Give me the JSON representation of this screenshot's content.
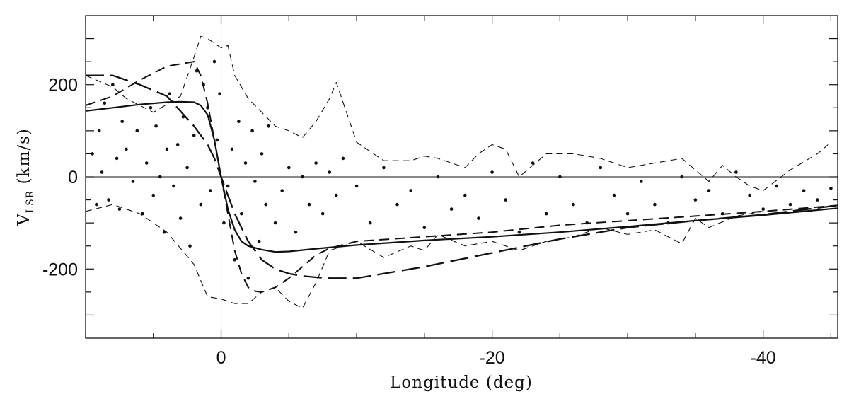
{
  "chart_data": {
    "type": "scatter",
    "title": "",
    "xlabel": "Longitude (deg)",
    "ylabel_main": "V",
    "ylabel_sub": "LSR",
    "ylabel_unit": "(km/s)",
    "xlim": [
      10,
      -45.5
    ],
    "ylim": [
      -350,
      350
    ],
    "x_ticks": [
      0,
      -20,
      -40
    ],
    "x_tick_labels": [
      "0",
      "-20",
      "-40"
    ],
    "y_ticks": [
      200,
      0,
      -200
    ],
    "y_tick_labels": [
      "200",
      "0",
      "-200"
    ],
    "x_minor_step": 5,
    "y_minor_step": 50,
    "reference_lines": {
      "x": 0,
      "y": 0
    },
    "grid": false,
    "legend": "none",
    "series": [
      {
        "style": "solid",
        "x": [
          10,
          8,
          6,
          4,
          3,
          2,
          1.5,
          1,
          0.5,
          0,
          -0.5,
          -1,
          -1.5,
          -2,
          -3,
          -4,
          -5,
          -7,
          -10,
          -15,
          -20,
          -25,
          -30,
          -35,
          -40,
          -45.5
        ],
        "y": [
          143,
          150,
          157,
          162,
          163,
          162,
          155,
          135,
          80,
          0,
          -70,
          -115,
          -140,
          -150,
          -158,
          -163,
          -162,
          -156,
          -148,
          -138,
          -130,
          -120,
          -108,
          -95,
          -83,
          -68
        ]
      },
      {
        "style": "long-dash",
        "x": [
          10,
          8,
          6,
          4,
          2,
          1,
          0.5,
          0,
          -0.5,
          -1,
          -2,
          -3,
          -4,
          -5,
          -6,
          -7,
          -8,
          -10,
          -12,
          -15,
          -20,
          -25,
          -30,
          -35,
          -40,
          -45.5
        ],
        "y": [
          220,
          220,
          200,
          175,
          110,
          70,
          40,
          0,
          -40,
          -80,
          -140,
          -180,
          -200,
          -210,
          -215,
          -218,
          -220,
          -220,
          -210,
          -195,
          -165,
          -135,
          -110,
          -95,
          -82,
          -62
        ]
      },
      {
        "style": "medium-dash",
        "x": [
          10,
          8,
          6,
          4,
          2,
          1.5,
          1,
          0.5,
          0,
          -0.5,
          -1,
          -1.5,
          -2,
          -2.5,
          -3,
          -4,
          -5,
          -6,
          -7,
          -8,
          -10,
          -15,
          -20,
          -25,
          -30,
          -35,
          -40,
          -45.5
        ],
        "y": [
          155,
          175,
          210,
          240,
          250,
          220,
          160,
          80,
          0,
          -80,
          -160,
          -210,
          -240,
          -248,
          -250,
          -240,
          -220,
          -195,
          -170,
          -155,
          -140,
          -130,
          -120,
          -105,
          -95,
          -85,
          -75,
          -62
        ]
      },
      {
        "style": "short-dash",
        "x": [
          10,
          8,
          7,
          5,
          3,
          2,
          1.5,
          1,
          0.5,
          0,
          -0.5,
          -1,
          -2,
          -3,
          -4,
          -5,
          -6,
          -7,
          -8,
          -8.5,
          -10,
          -12,
          -14,
          -15,
          -16,
          -18,
          -19,
          -20,
          -21,
          -22,
          -24,
          -26,
          -28,
          -30,
          -32,
          -34,
          -36,
          -37,
          -38,
          -39,
          -40,
          -42,
          -44,
          -45
        ],
        "y": [
          220,
          195,
          170,
          140,
          175,
          260,
          305,
          300,
          290,
          280,
          285,
          220,
          170,
          140,
          110,
          100,
          85,
          120,
          170,
          205,
          75,
          35,
          35,
          45,
          40,
          20,
          50,
          70,
          60,
          0,
          50,
          50,
          40,
          20,
          30,
          40,
          -10,
          25,
          0,
          -20,
          -30,
          15,
          50,
          75
        ]
      },
      {
        "style": "short-dash",
        "x": [
          10,
          8,
          6,
          4,
          2,
          1,
          0,
          -0.5,
          -1,
          -2,
          -3,
          -4,
          -5,
          -6,
          -7,
          -8,
          -10,
          -12,
          -14,
          -15,
          -16,
          -18,
          -20,
          -22,
          -24,
          -26,
          -28,
          -30,
          -32,
          -34,
          -35,
          -36,
          -38,
          -40
        ],
        "y": [
          -75,
          -60,
          -80,
          -120,
          -190,
          -260,
          -265,
          -270,
          -275,
          -275,
          -250,
          -240,
          -270,
          -285,
          -230,
          -160,
          -140,
          -175,
          -150,
          -160,
          -125,
          -150,
          -140,
          -160,
          -140,
          -130,
          -110,
          -125,
          -115,
          -145,
          -90,
          -110,
          -85,
          -75
        ]
      }
    ],
    "points": {
      "x": [
        9.5,
        9.2,
        9,
        8.8,
        8.6,
        8.3,
        8,
        7.7,
        7.5,
        7.3,
        7,
        6.5,
        6.2,
        5.8,
        5.5,
        5.2,
        5,
        4.8,
        4.5,
        4.2,
        4,
        3.8,
        3.5,
        3.2,
        3,
        2.8,
        2.5,
        2.3,
        2,
        1.8,
        1.5,
        1.3,
        1,
        0.8,
        0.5,
        0.3,
        0.1,
        -0.2,
        -0.5,
        -0.8,
        -1,
        -1.3,
        -1.5,
        -1.8,
        -2,
        -2.3,
        -2.5,
        -2.8,
        -3,
        -3.3,
        -3.5,
        -4,
        -4.5,
        -5,
        -5.5,
        -6,
        -6.5,
        -7,
        -7.5,
        -8,
        -8.5,
        -9,
        -10,
        -11,
        -12,
        -13,
        -14,
        -15,
        -16,
        -17,
        -18,
        -19,
        -20,
        -21,
        -22,
        -23,
        -24,
        -25,
        -26,
        -27,
        -28,
        -29,
        -30,
        -31,
        -32,
        -33,
        -34,
        -35,
        -36,
        -37,
        -38,
        -39,
        -40,
        -41,
        -42,
        -43,
        -44,
        -45
      ],
      "y": [
        50,
        -60,
        100,
        10,
        160,
        -50,
        200,
        40,
        -70,
        120,
        60,
        -10,
        100,
        -80,
        30,
        150,
        -40,
        110,
        0,
        -120,
        60,
        180,
        -20,
        70,
        -90,
        130,
        20,
        -150,
        90,
        230,
        -60,
        200,
        150,
        -30,
        250,
        80,
        180,
        -100,
        -20,
        60,
        -180,
        120,
        -80,
        30,
        -220,
        100,
        -10,
        -140,
        50,
        -60,
        110,
        -100,
        -30,
        20,
        -120,
        0,
        -60,
        30,
        -80,
        10,
        -40,
        40,
        -20,
        -100,
        20,
        -60,
        -30,
        -110,
        0,
        -70,
        -40,
        -90,
        10,
        -50,
        -120,
        30,
        -80,
        0,
        -60,
        -100,
        20,
        -40,
        -80,
        -10,
        -60,
        -100,
        0,
        -50,
        -30,
        -80,
        10,
        -40,
        -70,
        -20,
        -60,
        -30,
        -50,
        -25
      ]
    }
  }
}
